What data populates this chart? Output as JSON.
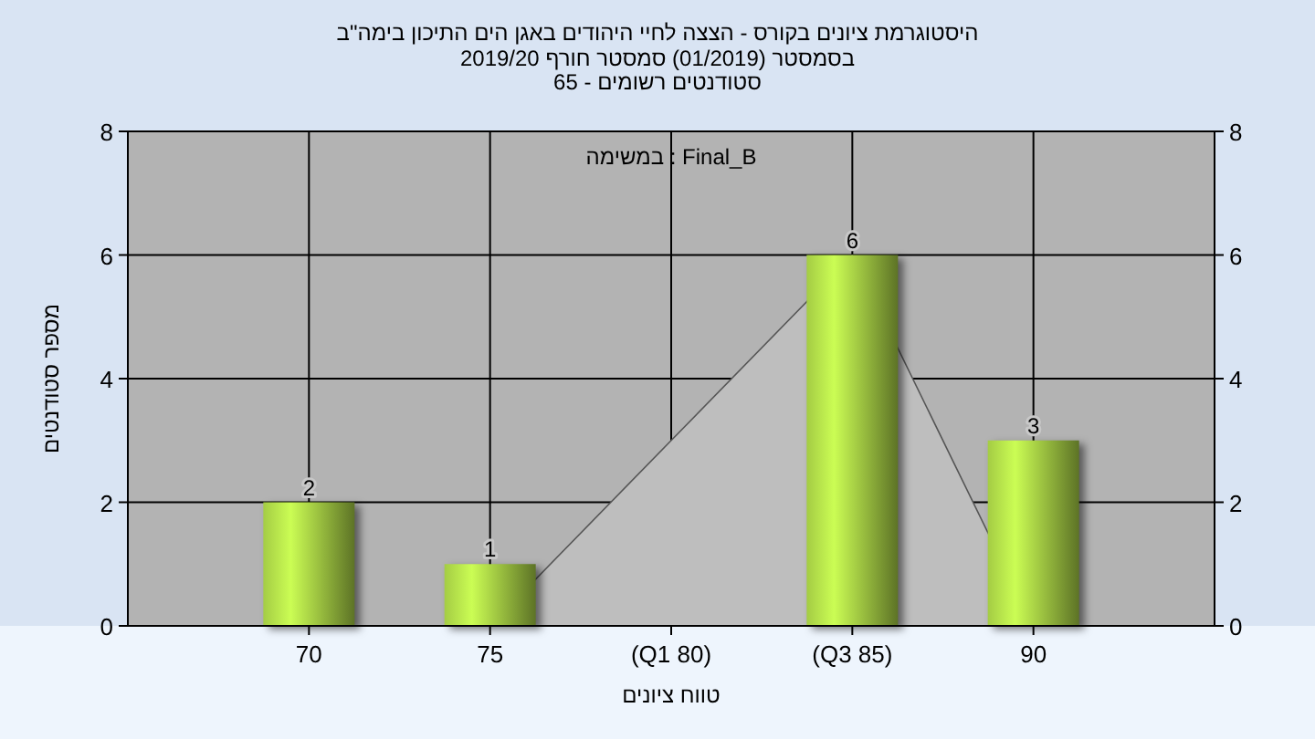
{
  "chart_data": {
    "type": "bar",
    "title": "היסטוגרמת ציונים בקורס - הצצה לחיי היהודים באגן הים התיכון בימה\"ב",
    "subtitle": "בסמסטר  (01/2019)  סמסטר חורף 2019/20\nסטודנטים רשומים - 65",
    "annotations": [
      "במשימה : Final_B"
    ],
    "xlabel": "טווח ציונים",
    "ylabel": "מספר סטודנטים",
    "categories": [
      "70",
      "75",
      "(Q1 80)",
      "(Q3 85)",
      "90"
    ],
    "series": [
      {
        "type": "area",
        "color": "#bebebe",
        "values": [
          null,
          0,
          3,
          6,
          0
        ]
      },
      {
        "color": "#a4cc44",
        "values": [
          2,
          1,
          0,
          6,
          3
        ],
        "value_labels": [
          "2",
          "1",
          null,
          "6",
          "3"
        ]
      }
    ],
    "ylim": [
      0,
      8
    ],
    "yticks": [
      0,
      2,
      4,
      6,
      8
    ],
    "y2lim": [
      0,
      8
    ],
    "y2ticks": [
      0,
      2,
      4,
      6,
      8
    ],
    "grid": true
  }
}
